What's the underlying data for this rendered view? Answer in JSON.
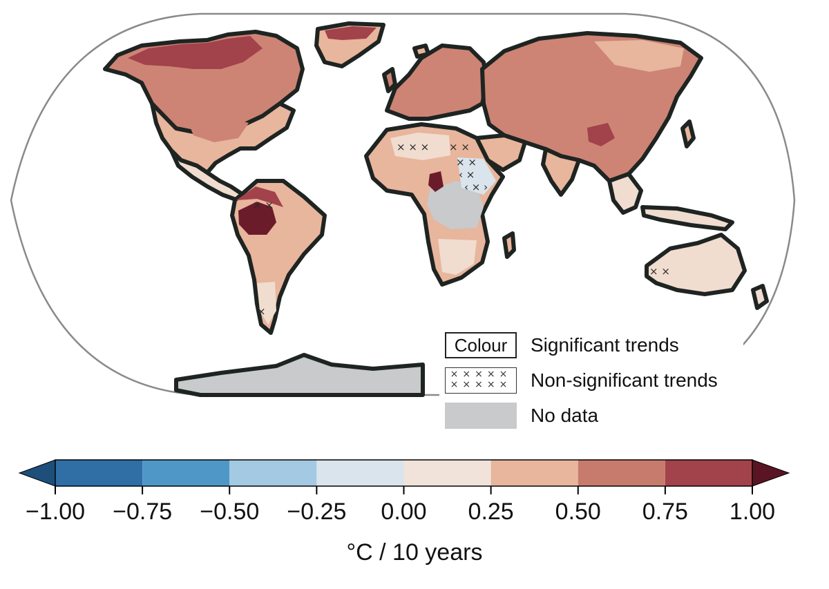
{
  "map": {
    "colors": {
      "land_0_25": "#f1dcd0",
      "land_25_50": "#e8b59d",
      "land_50_75": "#cd8474",
      "land_75_100": "#a2424b",
      "land_over_100": "#6b1c2a",
      "land_neg": "#d9e4ec",
      "no_data": "#c8cacc",
      "coastline": "#1e2422",
      "frame": "#8a8a8a"
    }
  },
  "legend": {
    "items": [
      {
        "swatch": "Colour",
        "label": "Significant trends"
      },
      {
        "swatch": "×××××",
        "label": "Non-significant trends"
      },
      {
        "swatch": "",
        "label": "No data"
      }
    ],
    "hatch_rows": [
      "×××××",
      "×××××"
    ]
  },
  "colorbar": {
    "tick_labels": [
      "−1.00",
      "−0.75",
      "−0.50",
      "−0.25",
      "0.00",
      "0.25",
      "0.50",
      "0.75",
      "1.00"
    ],
    "tick_values": [
      -1.0,
      -0.75,
      -0.5,
      -0.25,
      0.0,
      0.25,
      0.5,
      0.75,
      1.0
    ],
    "label": "°C / 10 years",
    "bins": [
      {
        "from": -1.0,
        "to": -0.75,
        "color": "#2f6fa6"
      },
      {
        "from": -0.75,
        "to": -0.5,
        "color": "#4f97c7"
      },
      {
        "from": -0.5,
        "to": -0.25,
        "color": "#a4c9e2"
      },
      {
        "from": -0.25,
        "to": 0.0,
        "color": "#d9e4ec"
      },
      {
        "from": 0.0,
        "to": 0.25,
        "color": "#f1e3da"
      },
      {
        "from": 0.25,
        "to": 0.5,
        "color": "#e8b59d"
      },
      {
        "from": 0.5,
        "to": 0.75,
        "color": "#c77b6d"
      },
      {
        "from": 0.75,
        "to": 1.0,
        "color": "#a2424b"
      }
    ],
    "under_color": "#1d4f7a",
    "over_color": "#5a1424"
  }
}
